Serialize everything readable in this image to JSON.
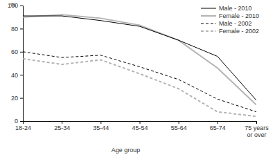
{
  "chart_data": {
    "type": "line",
    "x_label": "Age group",
    "y_label": "%",
    "categories": [
      "18-24",
      "25-34",
      "35-44",
      "45-54",
      "55-64",
      "65-74",
      "75 years or over"
    ],
    "series": [
      {
        "name": "Male - 2010",
        "color": "#000000",
        "line_style": "solid",
        "values": [
          91,
          91,
          87,
          82,
          70,
          56,
          18
        ]
      },
      {
        "name": "Female - 2010",
        "color": "#b3b3b3",
        "line_style": "solid",
        "values": [
          90,
          92,
          89,
          83,
          70,
          46,
          14
        ]
      },
      {
        "name": "Male - 2002",
        "color": "#000000",
        "line_style": "dashed",
        "values": [
          60,
          55,
          57,
          47,
          36,
          19,
          8
        ]
      },
      {
        "name": "Female - 2002",
        "color": "#b3b3b3",
        "line_style": "dashed",
        "values": [
          54,
          49,
          53,
          41,
          28,
          8,
          4
        ]
      }
    ],
    "ylim": [
      0,
      100
    ],
    "yticks": [
      0,
      20,
      40,
      60,
      80,
      100
    ],
    "grid": false,
    "legend": "top-right"
  }
}
